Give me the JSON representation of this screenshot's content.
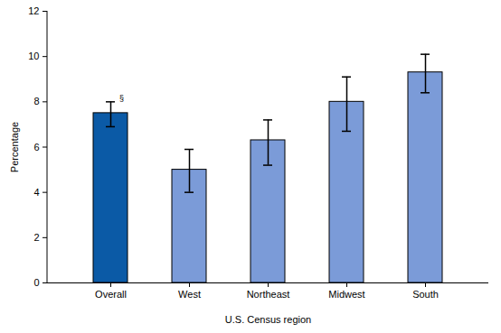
{
  "chart_data": {
    "type": "bar",
    "categories": [
      "Overall",
      "West",
      "Northeast",
      "Midwest",
      "South"
    ],
    "values": [
      7.5,
      5.0,
      6.3,
      8.0,
      9.3
    ],
    "error_low": [
      6.9,
      4.0,
      5.2,
      6.7,
      8.4
    ],
    "error_high": [
      8.0,
      5.9,
      7.2,
      9.1,
      10.1
    ],
    "colors": [
      "#0b5aa6",
      "#7b9bd8",
      "#7b9bd8",
      "#7b9bd8",
      "#7b9bd8"
    ],
    "x_label": "U.S. Census region",
    "y_label": "Percentage",
    "ylim": [
      0,
      12
    ],
    "yticks": [
      0,
      2,
      4,
      6,
      8,
      10,
      12
    ],
    "grid": false,
    "annotations": [
      {
        "text": "§",
        "category": "Overall"
      }
    ]
  }
}
